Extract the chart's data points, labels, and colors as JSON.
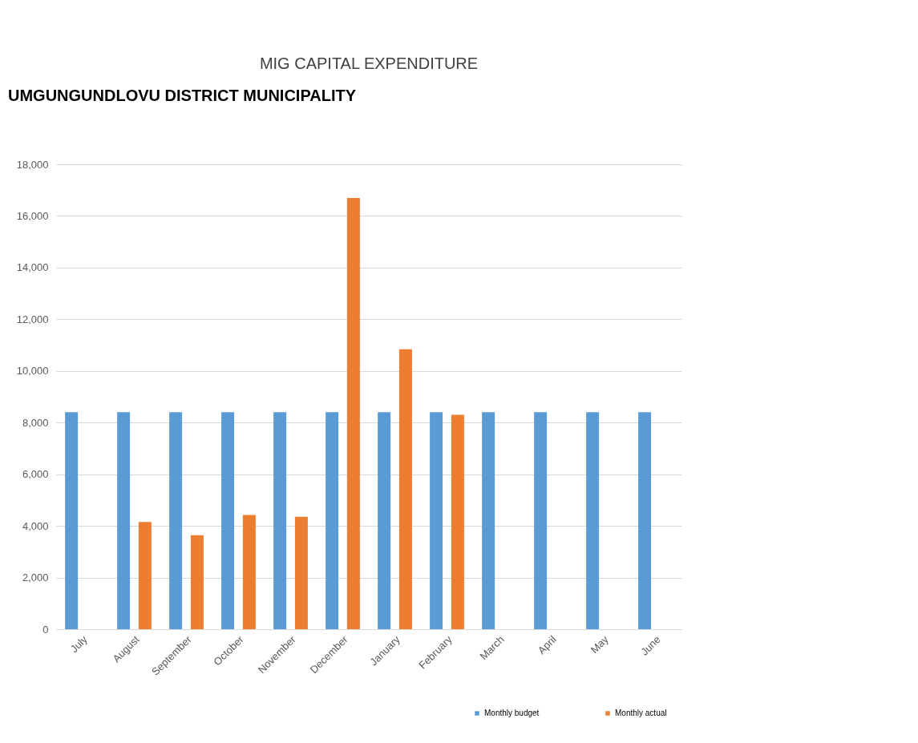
{
  "chart_data": {
    "type": "bar",
    "title": "MIG CAPITAL EXPENDITURE",
    "annotations": [
      "UMGUNGUNDLOVU DISTRICT MUNICIPALITY"
    ],
    "categories": [
      "July",
      "August",
      "September",
      "October",
      "November",
      "December",
      "January",
      "February",
      "March",
      "April",
      "May",
      "June"
    ],
    "series": [
      {
        "name": "Monthly budget",
        "color": "#5b9bd5",
        "values": [
          8400,
          8400,
          8400,
          8400,
          8400,
          8400,
          8400,
          8400,
          8400,
          8400,
          8400,
          8400
        ]
      },
      {
        "name": "Monthly actual",
        "color": "#ed7d31",
        "values": [
          null,
          4150,
          3640,
          4420,
          4350,
          16700,
          10840,
          8300,
          null,
          null,
          null,
          null
        ]
      }
    ],
    "ylim": [
      0,
      18000
    ],
    "yticks": [
      0,
      {
        "value": 2000,
        "label": "2,000"
      },
      {
        "value": 4000,
        "label": "4,000"
      },
      {
        "value": 6000,
        "label": "6,000"
      },
      {
        "value": 8000,
        "label": "8,000"
      },
      {
        "value": 10000,
        "label": "10,000"
      },
      {
        "value": 12000,
        "label": "12,000"
      },
      {
        "value": 14000,
        "label": "14,000"
      },
      {
        "value": 16000,
        "label": "16,000"
      },
      {
        "value": 18000,
        "label": "18,000"
      }
    ],
    "grid": "y",
    "legend": "bottom right"
  }
}
